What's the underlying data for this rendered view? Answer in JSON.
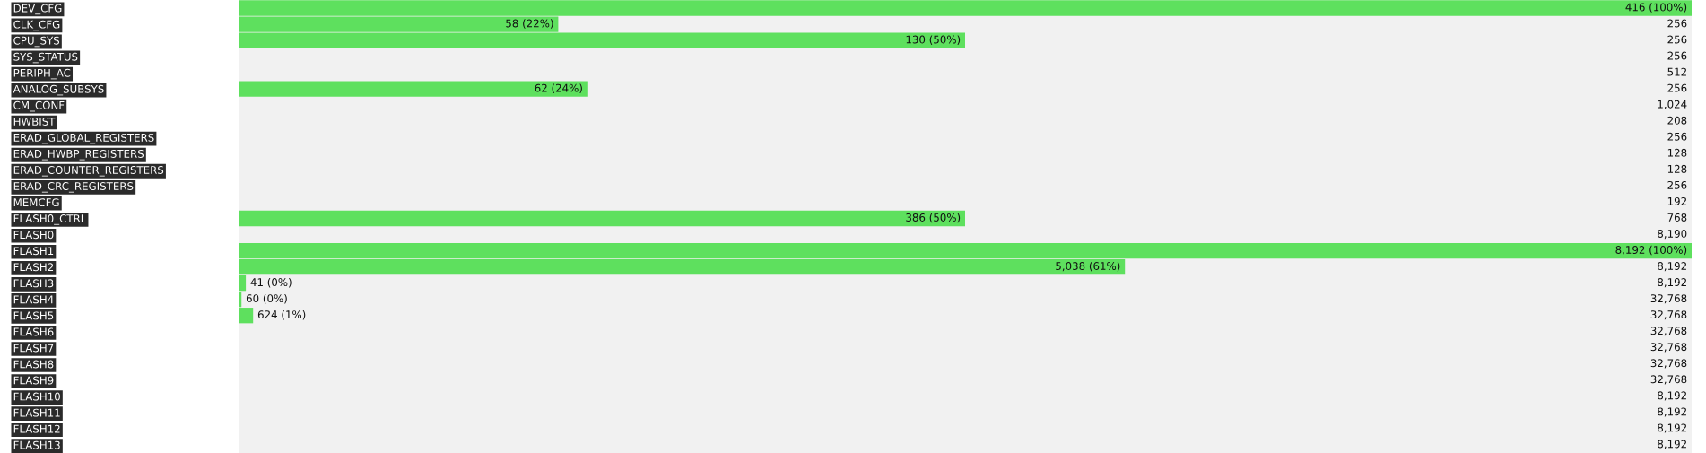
{
  "chart_data": {
    "type": "bar",
    "orientation": "horizontal",
    "grid": false,
    "legend": false,
    "tick_labels": "y",
    "xlim": [
      0,
      100
    ],
    "categories": [
      "DEV_CFG",
      "CLK_CFG",
      "CPU_SYS",
      "SYS_STATUS",
      "PERIPH_AC",
      "ANALOG_SUBSYS",
      "CM_CONF",
      "HWBIST",
      "ERAD_GLOBAL_REGISTERS",
      "ERAD_HWBP_REGISTERS",
      "ERAD_COUNTER_REGISTERS",
      "ERAD_CRC_REGISTERS",
      "MEMCFG",
      "FLASH0_CTRL",
      "FLASH0",
      "FLASH1",
      "FLASH2",
      "FLASH3",
      "FLASH4",
      "FLASH5",
      "FLASH6",
      "FLASH7",
      "FLASH8",
      "FLASH9",
      "FLASH10",
      "FLASH11",
      "FLASH12",
      "FLASH13"
    ],
    "series": [
      {
        "color": "#5ee05e",
        "values": [
          100,
          22,
          50,
          0,
          0,
          24,
          0,
          0,
          0,
          0,
          0,
          0,
          0,
          50,
          0,
          100,
          61,
          0.5,
          0.2,
          1,
          0,
          0,
          0,
          0,
          0,
          0,
          0,
          0
        ],
        "value_labels": [
          "416 (100%)",
          "58 (22%)",
          "130 (50%)",
          null,
          null,
          "62 (24%)",
          null,
          null,
          null,
          null,
          null,
          null,
          null,
          "386 (50%)",
          null,
          "8,192 (100%)",
          "5,038 (61%)",
          "41 (0%)",
          "60 (0%)",
          "624 (1%)",
          null,
          null,
          null,
          null,
          null,
          null,
          null,
          null
        ]
      }
    ],
    "annotations": [
      "256",
      "256",
      "256",
      "512",
      "256",
      "1,024",
      "208",
      "256",
      "128",
      "128",
      "256",
      "192",
      "768",
      "8,190",
      "8,192",
      "8,192",
      "32,768",
      "32,768",
      "32,768",
      "32,768",
      "32,768",
      "32,768",
      "8,192",
      "8,192",
      "8,192",
      "8,192"
    ]
  }
}
